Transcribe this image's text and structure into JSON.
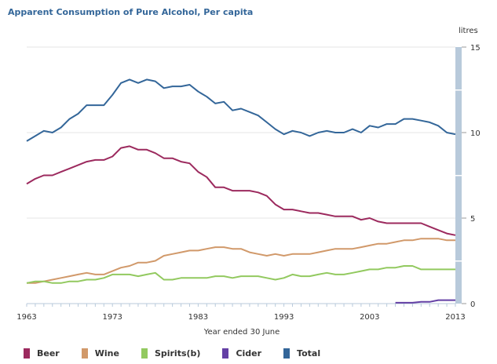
{
  "chart_data": {
    "type": "line",
    "title": "Apparent Consumption of Pure Alcohol, Per capita",
    "xlabel": "Year ended 30 June",
    "ylabel": "litres",
    "xlim": [
      1963,
      2013
    ],
    "ylim": [
      0,
      15
    ],
    "x_ticks": [
      "1963",
      "1973",
      "1983",
      "1993",
      "2003",
      "2013"
    ],
    "y_ticks": [
      "0",
      "5",
      "10",
      "15"
    ],
    "y_axis_side": "right",
    "grid": true,
    "legend_position": "bottom",
    "x": [
      1963,
      1964,
      1965,
      1966,
      1967,
      1968,
      1969,
      1970,
      1971,
      1972,
      1973,
      1974,
      1975,
      1976,
      1977,
      1978,
      1979,
      1980,
      1981,
      1982,
      1983,
      1984,
      1985,
      1986,
      1987,
      1988,
      1989,
      1990,
      1991,
      1992,
      1993,
      1994,
      1995,
      1996,
      1997,
      1998,
      1999,
      2000,
      2001,
      2002,
      2003,
      2004,
      2005,
      2006,
      2007,
      2008,
      2009,
      2010,
      2011,
      2012,
      2013
    ],
    "series": [
      {
        "name": "Beer",
        "color": "#9c2a5e",
        "values": [
          7.0,
          7.3,
          7.5,
          7.5,
          7.7,
          7.9,
          8.1,
          8.3,
          8.4,
          8.4,
          8.6,
          9.1,
          9.2,
          9.0,
          9.0,
          8.8,
          8.5,
          8.5,
          8.3,
          8.2,
          7.7,
          7.4,
          6.8,
          6.8,
          6.6,
          6.6,
          6.6,
          6.5,
          6.3,
          5.8,
          5.5,
          5.5,
          5.4,
          5.3,
          5.3,
          5.2,
          5.1,
          5.1,
          5.1,
          4.9,
          5.0,
          4.8,
          4.7,
          4.7,
          4.7,
          4.7,
          4.7,
          4.5,
          4.3,
          4.1,
          4.0
        ]
      },
      {
        "name": "Wine",
        "color": "#d1996a",
        "values": [
          1.2,
          1.2,
          1.3,
          1.4,
          1.5,
          1.6,
          1.7,
          1.8,
          1.7,
          1.7,
          1.9,
          2.1,
          2.2,
          2.4,
          2.4,
          2.5,
          2.8,
          2.9,
          3.0,
          3.1,
          3.1,
          3.2,
          3.3,
          3.3,
          3.2,
          3.2,
          3.0,
          2.9,
          2.8,
          2.9,
          2.8,
          2.9,
          2.9,
          2.9,
          3.0,
          3.1,
          3.2,
          3.2,
          3.2,
          3.3,
          3.4,
          3.5,
          3.5,
          3.6,
          3.7,
          3.7,
          3.8,
          3.8,
          3.8,
          3.7,
          3.7
        ]
      },
      {
        "name": "Spirits(b)",
        "color": "#92c95f",
        "values": [
          1.2,
          1.3,
          1.3,
          1.2,
          1.2,
          1.3,
          1.3,
          1.4,
          1.4,
          1.5,
          1.7,
          1.7,
          1.7,
          1.6,
          1.7,
          1.8,
          1.4,
          1.4,
          1.5,
          1.5,
          1.5,
          1.5,
          1.6,
          1.6,
          1.5,
          1.6,
          1.6,
          1.6,
          1.5,
          1.4,
          1.5,
          1.7,
          1.6,
          1.6,
          1.7,
          1.8,
          1.7,
          1.7,
          1.8,
          1.9,
          2.0,
          2.0,
          2.1,
          2.1,
          2.2,
          2.2,
          2.0,
          2.0,
          2.0,
          2.0,
          2.0
        ]
      },
      {
        "name": "Cider",
        "color": "#6440a5",
        "values": [
          null,
          null,
          null,
          null,
          null,
          null,
          null,
          null,
          null,
          null,
          null,
          null,
          null,
          null,
          null,
          null,
          null,
          null,
          null,
          null,
          null,
          null,
          null,
          null,
          null,
          null,
          null,
          null,
          null,
          null,
          null,
          null,
          null,
          null,
          null,
          null,
          null,
          null,
          null,
          null,
          null,
          null,
          null,
          0.05,
          0.05,
          0.05,
          0.1,
          0.1,
          0.2,
          0.2,
          0.2
        ]
      },
      {
        "name": "Total",
        "color": "#336699",
        "values": [
          9.5,
          9.8,
          10.1,
          10.0,
          10.3,
          10.8,
          11.1,
          11.6,
          11.6,
          11.6,
          12.2,
          12.9,
          13.1,
          12.9,
          13.1,
          13.0,
          12.6,
          12.7,
          12.7,
          12.8,
          12.4,
          12.1,
          11.7,
          11.8,
          11.3,
          11.4,
          11.2,
          11.0,
          10.6,
          10.2,
          9.9,
          10.1,
          10.0,
          9.8,
          10.0,
          10.1,
          10.0,
          10.0,
          10.2,
          10.0,
          10.4,
          10.3,
          10.5,
          10.5,
          10.8,
          10.8,
          10.7,
          10.6,
          10.4,
          10.0,
          9.9
        ]
      }
    ]
  }
}
